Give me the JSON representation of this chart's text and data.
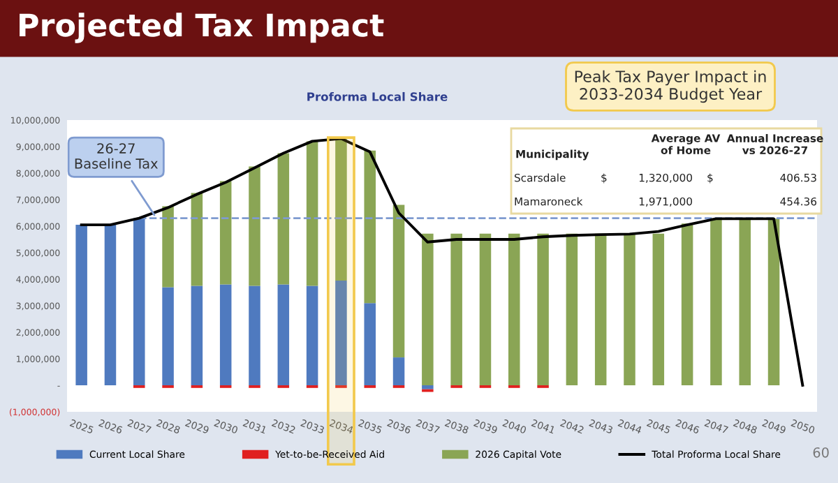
{
  "chart_data": {
    "type": "bar",
    "stacked": true,
    "title": "Projected Tax Impact",
    "subtitle": "Proforma Local Share",
    "categories": [
      "2025",
      "2026",
      "2027",
      "2028",
      "2029",
      "2030",
      "2031",
      "2032",
      "2033",
      "2034",
      "2035",
      "2036",
      "2037",
      "2038",
      "2039",
      "2040",
      "2041",
      "2042",
      "2043",
      "2044",
      "2045",
      "2046",
      "2047",
      "2048",
      "2049",
      "2050"
    ],
    "series": [
      {
        "name": "Current Local Share",
        "color": "#4f7abf",
        "values": [
          6050000,
          6050000,
          6300000,
          3700000,
          3750000,
          3800000,
          3750000,
          3800000,
          3750000,
          3950000,
          3100000,
          1050000,
          -150000,
          0,
          0,
          0,
          0,
          0,
          0,
          0,
          0,
          0,
          0,
          0,
          0,
          0
        ]
      },
      {
        "name": "Yet-to-be-Received Aid",
        "color": "#e02020",
        "values": [
          0,
          0,
          -100000,
          -100000,
          -100000,
          -100000,
          -100000,
          -100000,
          -100000,
          -100000,
          -100000,
          -100000,
          -100000,
          -100000,
          -100000,
          -100000,
          -100000,
          0,
          0,
          0,
          0,
          0,
          0,
          0,
          0,
          0
        ]
      },
      {
        "name": "2026 Capital Vote",
        "color": "#8aa555",
        "values": [
          0,
          0,
          0,
          3050000,
          3500000,
          3900000,
          4500000,
          4950000,
          5450000,
          5350000,
          5750000,
          5750000,
          5720000,
          5720000,
          5720000,
          5720000,
          5720000,
          5720000,
          5720000,
          5720000,
          5720000,
          6100000,
          6280000,
          6280000,
          6280000,
          0
        ]
      },
      {
        "name": "Total Proforma Local Share",
        "color": "#000000",
        "type": "line",
        "values": [
          6050000,
          6050000,
          6300000,
          6700000,
          7200000,
          7650000,
          8200000,
          8750000,
          9200000,
          9300000,
          8800000,
          6500000,
          5400000,
          5500000,
          5500000,
          5500000,
          5600000,
          5650000,
          5680000,
          5700000,
          5800000,
          6050000,
          6280000,
          6280000,
          6280000,
          0
        ]
      }
    ],
    "ylim": [
      -1000000,
      10000000
    ],
    "yticks": [
      {
        "value": -1000000,
        "label": "(1,000,000)"
      },
      {
        "value": 0,
        "label": "-"
      },
      {
        "value": 1000000,
        "label": "1,000,000"
      },
      {
        "value": 2000000,
        "label": "2,000,000"
      },
      {
        "value": 3000000,
        "label": "3,000,000"
      },
      {
        "value": 4000000,
        "label": "4,000,000"
      },
      {
        "value": 5000000,
        "label": "5,000,000"
      },
      {
        "value": 6000000,
        "label": "6,000,000"
      },
      {
        "value": 7000000,
        "label": "7,000,000"
      },
      {
        "value": 8000000,
        "label": "8,000,000"
      },
      {
        "value": 9000000,
        "label": "9,000,000"
      },
      {
        "value": 10000000,
        "label": "10,000,000"
      }
    ],
    "ref_lines": [
      {
        "axis": "y",
        "value": 6300000,
        "label": "26-27\nBaseline Tax",
        "color": "#7f9bd0",
        "line_style": "dashed"
      }
    ],
    "bands": [
      {
        "axis": "x",
        "from": "2034",
        "to": "2034",
        "color": "#f2c94c"
      }
    ],
    "annotations": [
      "Peak Tax Payer Impact in\n2033-2034 Budget Year",
      "Municipality",
      "Average AV\nof Home",
      "Annual Increase\nvs 2026-27",
      "Scarsdale",
      "$",
      "1,320,000",
      "$",
      "406.53",
      "Mamaroneck",
      "1,971,000",
      "454.36",
      "60"
    ],
    "grid": false,
    "legend": "bottom"
  }
}
